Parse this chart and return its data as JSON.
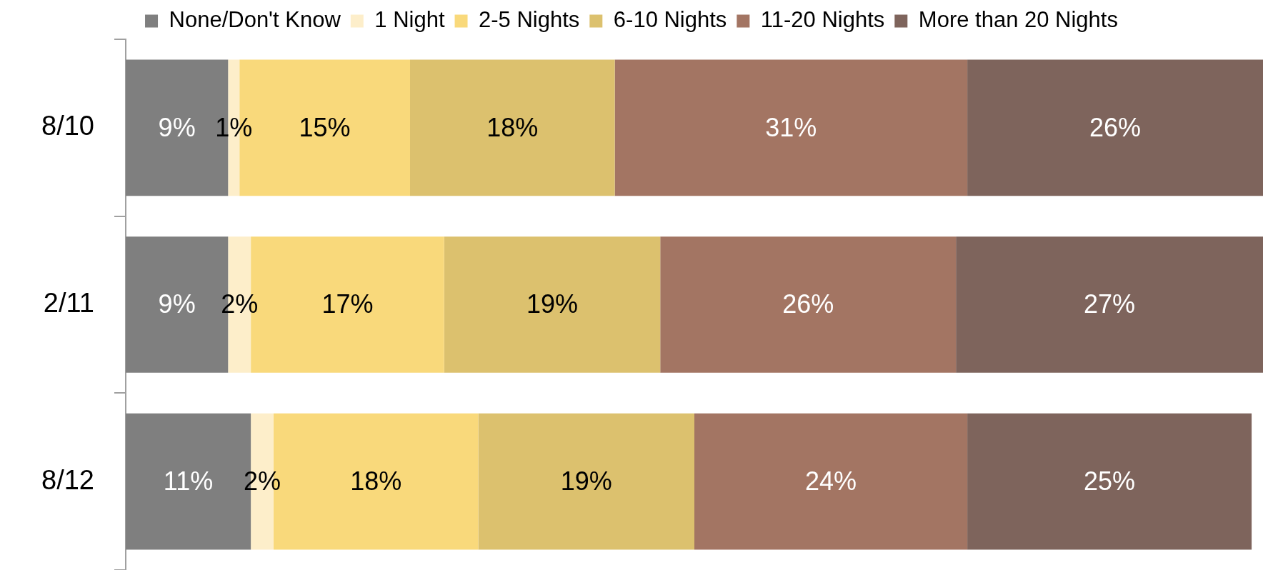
{
  "chart_data": {
    "type": "bar",
    "orientation": "horizontal",
    "stacked": true,
    "categories": [
      "8/10",
      "2/11",
      "8/12"
    ],
    "xlim": [
      0,
      100
    ],
    "tick_labels": "y",
    "legend": "top",
    "grid": false,
    "series": [
      {
        "name": "None/Don't Know",
        "color": "#7f7f7f",
        "values": [
          9,
          9,
          11
        ],
        "value_labels": [
          "9%",
          "9%",
          "11%"
        ]
      },
      {
        "name": "1 Night",
        "color": "#fdeeca",
        "values": [
          1,
          2,
          2
        ],
        "value_labels": [
          "1%",
          "2%",
          "2%"
        ]
      },
      {
        "name": "2-5 Nights",
        "color": "#f9d97b",
        "values": [
          15,
          17,
          18
        ],
        "value_labels": [
          "15%",
          "17%",
          "18%"
        ]
      },
      {
        "name": "6-10 Nights",
        "color": "#dcc16e",
        "values": [
          18,
          19,
          19
        ],
        "value_labels": [
          "18%",
          "19%",
          "19%"
        ]
      },
      {
        "name": "11-20 Nights",
        "color": "#a37563",
        "values": [
          31,
          26,
          24
        ],
        "value_labels": [
          "31%",
          "26%",
          "24%"
        ]
      },
      {
        "name": "More than 20 Nights",
        "color": "#7e645c",
        "values": [
          26,
          27,
          25
        ],
        "value_labels": [
          "26%",
          "27%",
          "25%"
        ]
      }
    ]
  }
}
